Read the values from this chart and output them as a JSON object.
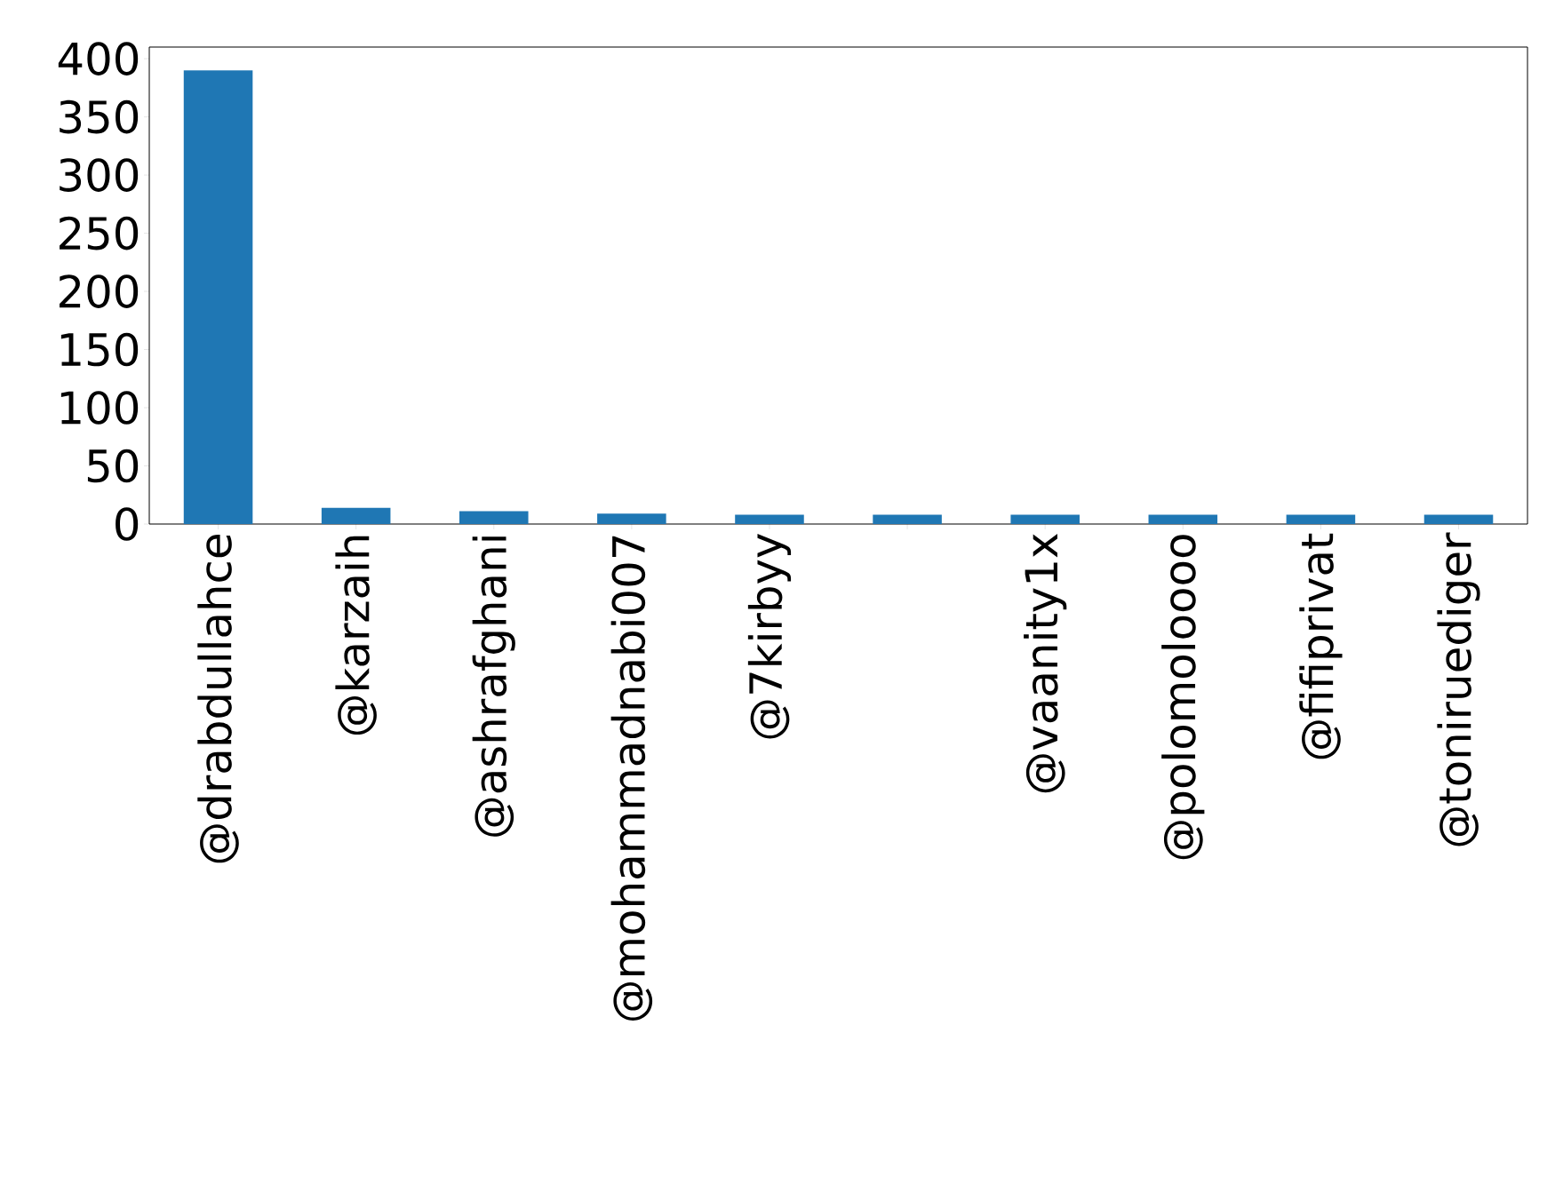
{
  "chart_data": {
    "type": "bar",
    "categories": [
      "@drabdullahce",
      "@karzaih",
      "@ashrafghani",
      "@mohammadnabi007",
      "@7kirbyy",
      null,
      "@vaanity1x",
      "@polomoloooo",
      "@fifiprivat",
      "@toniruediger"
    ],
    "values": [
      390,
      14,
      11,
      9,
      8,
      8,
      8,
      8,
      8,
      8
    ],
    "color": "#1f77b4",
    "ylim": [
      0,
      410
    ],
    "yticks": [
      0,
      50,
      100,
      150,
      200,
      250,
      300,
      350,
      400
    ],
    "grid": false
  }
}
